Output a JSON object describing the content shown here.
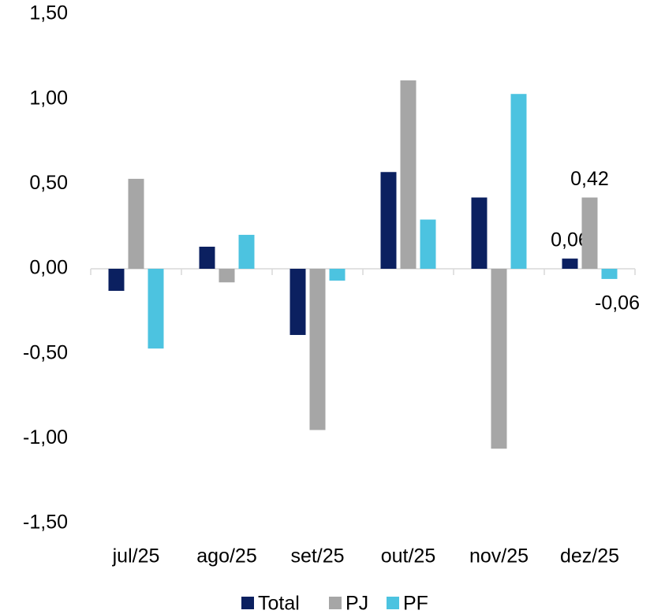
{
  "chart_data": {
    "type": "bar",
    "categories": [
      "jul/25",
      "ago/25",
      "set/25",
      "out/25",
      "nov/25",
      "dez/25"
    ],
    "series": [
      {
        "name": "Total",
        "color": "#0b2060",
        "values": [
          -0.13,
          0.13,
          -0.39,
          0.57,
          0.42,
          0.06
        ],
        "value_labels": [
          null,
          null,
          null,
          null,
          null,
          "0,06"
        ]
      },
      {
        "name": "PJ",
        "color": "#a6a6a6",
        "values": [
          0.53,
          -0.08,
          -0.95,
          1.11,
          -1.06,
          0.42
        ],
        "value_labels": [
          null,
          null,
          null,
          null,
          null,
          "0,42"
        ]
      },
      {
        "name": "PF",
        "color": "#4cc3e0",
        "values": [
          -0.47,
          0.2,
          -0.07,
          0.29,
          1.03,
          -0.06
        ],
        "value_labels": [
          null,
          null,
          null,
          null,
          null,
          "-0,06"
        ]
      }
    ],
    "ylim": [
      -1.5,
      1.5
    ],
    "yticks": [
      {
        "value": -1.5,
        "label": "-1,50"
      },
      {
        "value": -1.0,
        "label": "-1,00"
      },
      {
        "value": -0.5,
        "label": "-0,50"
      },
      {
        "value": 0,
        "label": "0,00"
      },
      {
        "value": 0.5,
        "label": "0,50"
      },
      {
        "value": 1.0,
        "label": "1,00"
      },
      {
        "value": 1.5,
        "label": "1,50"
      }
    ],
    "grid": false,
    "legend": "bottom"
  }
}
